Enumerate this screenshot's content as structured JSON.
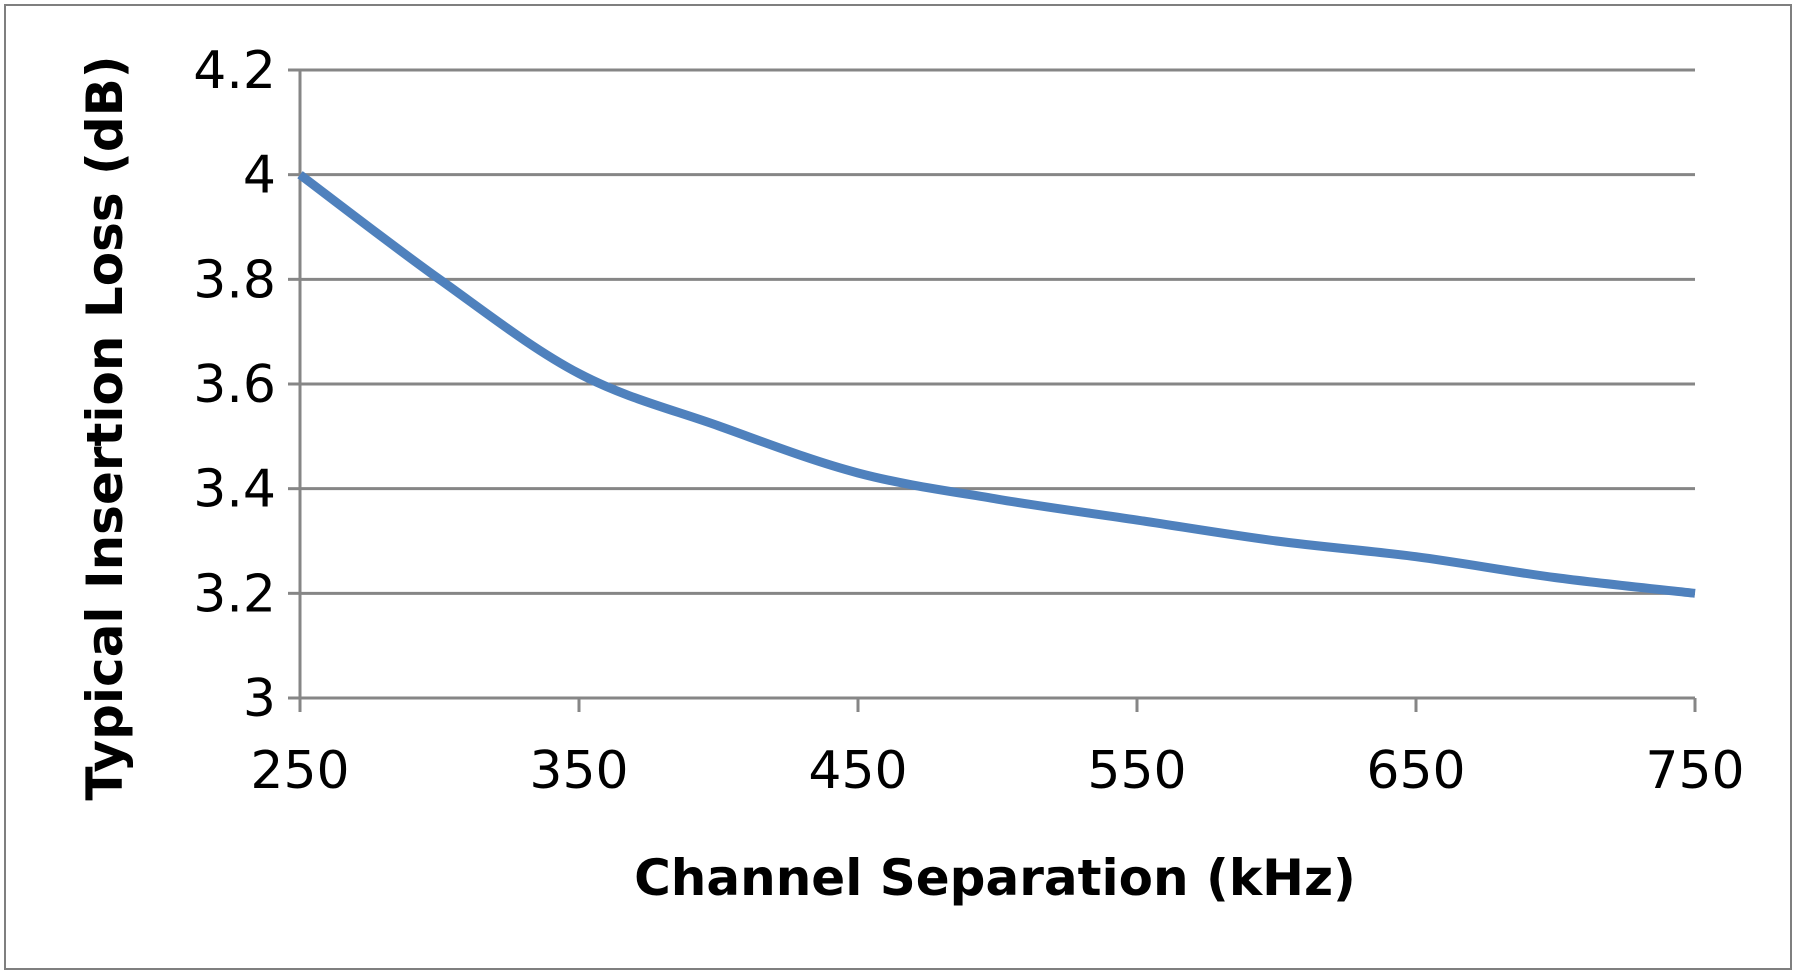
{
  "chart_data": {
    "type": "line",
    "title": "",
    "xlabel": "Channel Separation (kHz)",
    "ylabel": "Typical Insertion Loss (dB)",
    "x_ticks": [
      "250",
      "350",
      "450",
      "550",
      "650",
      "750"
    ],
    "y_ticks": [
      "3",
      "3.2",
      "3.4",
      "3.6",
      "3.8",
      "4",
      "4.2"
    ],
    "xlim": [
      250,
      750
    ],
    "ylim": [
      3,
      4.2
    ],
    "grid": "horizontal",
    "legend": "none",
    "series": [
      {
        "color": "#4f81bd",
        "x": [
          250,
          300,
          350,
          400,
          450,
          500,
          550,
          600,
          650,
          700,
          750
        ],
        "y": [
          4.0,
          3.8,
          3.62,
          3.52,
          3.43,
          3.38,
          3.34,
          3.3,
          3.27,
          3.23,
          3.2
        ]
      }
    ]
  }
}
